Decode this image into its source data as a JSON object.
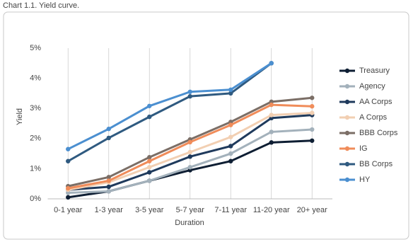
{
  "chart_data": {
    "type": "line",
    "title": "Chart 1.1. Yield curve.",
    "x_label": "Duration",
    "y_label": "Yield",
    "categories": [
      "0-1 year",
      "1-3 year",
      "3-5 year",
      "5-7 year",
      "7-11 year",
      "11-20 year",
      "20+ year"
    ],
    "series": [
      {
        "name": "Treasury",
        "color": "#0e1e33",
        "values": [
          0.05,
          0.25,
          0.6,
          0.95,
          1.25,
          1.87,
          1.93
        ]
      },
      {
        "name": "Agency",
        "color": "#a3b1bb",
        "values": [
          0.2,
          0.25,
          0.6,
          1.05,
          1.5,
          2.22,
          2.3
        ]
      },
      {
        "name": "AA Corps",
        "color": "#1f3a5c",
        "values": [
          0.3,
          0.4,
          0.88,
          1.4,
          1.75,
          2.68,
          2.78
        ]
      },
      {
        "name": "A Corps",
        "color": "#f2cfb2",
        "values": [
          0.3,
          0.55,
          1.05,
          1.55,
          2.05,
          2.78,
          2.85
        ]
      },
      {
        "name": "BBB Corps",
        "color": "#7b6e66",
        "values": [
          0.42,
          0.72,
          1.38,
          1.97,
          2.55,
          3.22,
          3.35
        ]
      },
      {
        "name": "IG",
        "color": "#f08c5a",
        "values": [
          0.35,
          0.6,
          1.25,
          1.88,
          2.45,
          3.12,
          3.07
        ]
      },
      {
        "name": "BB Corps",
        "color": "#2f5a80",
        "values": [
          1.25,
          2.02,
          2.72,
          3.4,
          3.5,
          4.5,
          null
        ]
      },
      {
        "name": "HY",
        "color": "#4b8fd0",
        "values": [
          1.65,
          2.32,
          3.08,
          3.55,
          3.62,
          4.5,
          null
        ]
      }
    ],
    "ylim": [
      0,
      5
    ],
    "yticks": [
      {
        "value": 0,
        "label": "0%"
      },
      {
        "value": 1,
        "label": "1%"
      },
      {
        "value": 2,
        "label": "2%"
      },
      {
        "value": 3,
        "label": "3%"
      },
      {
        "value": 4,
        "label": "4%"
      },
      {
        "value": 5,
        "label": "5%"
      }
    ],
    "grid": false,
    "legend": "right"
  }
}
